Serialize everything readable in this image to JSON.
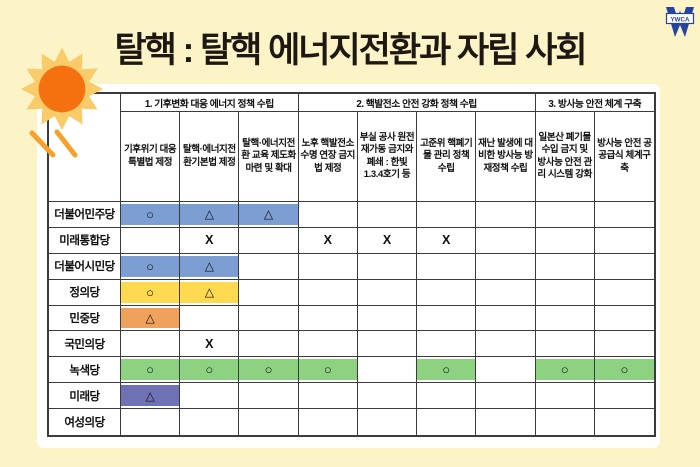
{
  "page": {
    "title": "탈핵 : 탈핵 에너지전환과 자립 사회",
    "logo_label": "YWCA"
  },
  "colors": {
    "background": "#fcf3c6",
    "panel": "#ffffff",
    "title_text": "#1e1813",
    "grid_border": "#3b3b3b",
    "blue": "#7d9ed2",
    "yellow": "#ffd94f",
    "orange": "#f0a25d",
    "green": "#8dd280",
    "purple": "#6f71b5",
    "sun_core": "#f5700e",
    "sun_rays": "#facb69",
    "sun_beams": "#f7a02b",
    "logo_blue": "#2545a1"
  },
  "chart_data": {
    "type": "table",
    "title": "탈핵 : 탈핵 에너지전환과 자립 사회",
    "column_groups": [
      {
        "label": "1. 기후변화 대응 에너지 정책 수립",
        "span": 3
      },
      {
        "label": "2. 핵발전소 안전 강화 정책 수립",
        "span": 4
      },
      {
        "label": "3. 방사능 안전 체계 구축",
        "span": 2
      }
    ],
    "columns": [
      "기후위기 대응특별법 제정",
      "탈핵·에너지전환기본법 제정",
      "탈핵·에너지전환 교육 제도화 마련 및 확대",
      "노후 핵발전소 수명 연장 금지법 제정",
      "부실 공사 원전 재가동 금지와 폐쇄 : 한빛 1.3.4호기 등",
      "고준위 핵폐기물 관리 정책 수립",
      "재난 발생에 대비한 방사능 방재정책 수립",
      "일본산 폐기물 수입 금지 및 방사능 안전 관리 시스템 강화",
      "방사능 안전 공공급식 체계구축"
    ],
    "rows": [
      {
        "party": "더불어민주당",
        "highlight": "blue",
        "cells": [
          "○",
          "△",
          "△",
          "",
          "",
          "",
          "",
          "",
          ""
        ]
      },
      {
        "party": "미래통합당",
        "highlight": "none",
        "cells": [
          "",
          "X",
          "",
          "X",
          "X",
          "X",
          "",
          "",
          ""
        ]
      },
      {
        "party": "더불어시민당",
        "highlight": "blue",
        "cells": [
          "○",
          "△",
          "",
          "",
          "",
          "",
          "",
          "",
          ""
        ]
      },
      {
        "party": "정의당",
        "highlight": "yellow",
        "cells": [
          "○",
          "△",
          "",
          "",
          "",
          "",
          "",
          "",
          ""
        ]
      },
      {
        "party": "민중당",
        "highlight": "orange",
        "cells": [
          "△",
          "",
          "",
          "",
          "",
          "",
          "",
          "",
          ""
        ]
      },
      {
        "party": "국민의당",
        "highlight": "none",
        "cells": [
          "",
          "X",
          "",
          "",
          "",
          "",
          "",
          "",
          ""
        ]
      },
      {
        "party": "녹색당",
        "highlight": "green",
        "cells": [
          "○",
          "○",
          "○",
          "○",
          "",
          "○",
          "",
          "○",
          "○"
        ]
      },
      {
        "party": "미래당",
        "highlight": "purple",
        "cells": [
          "△",
          "",
          "",
          "",
          "",
          "",
          "",
          "",
          ""
        ]
      },
      {
        "party": "여성의당",
        "highlight": "none",
        "cells": [
          "",
          "",
          "",
          "",
          "",
          "",
          "",
          "",
          ""
        ]
      }
    ]
  }
}
